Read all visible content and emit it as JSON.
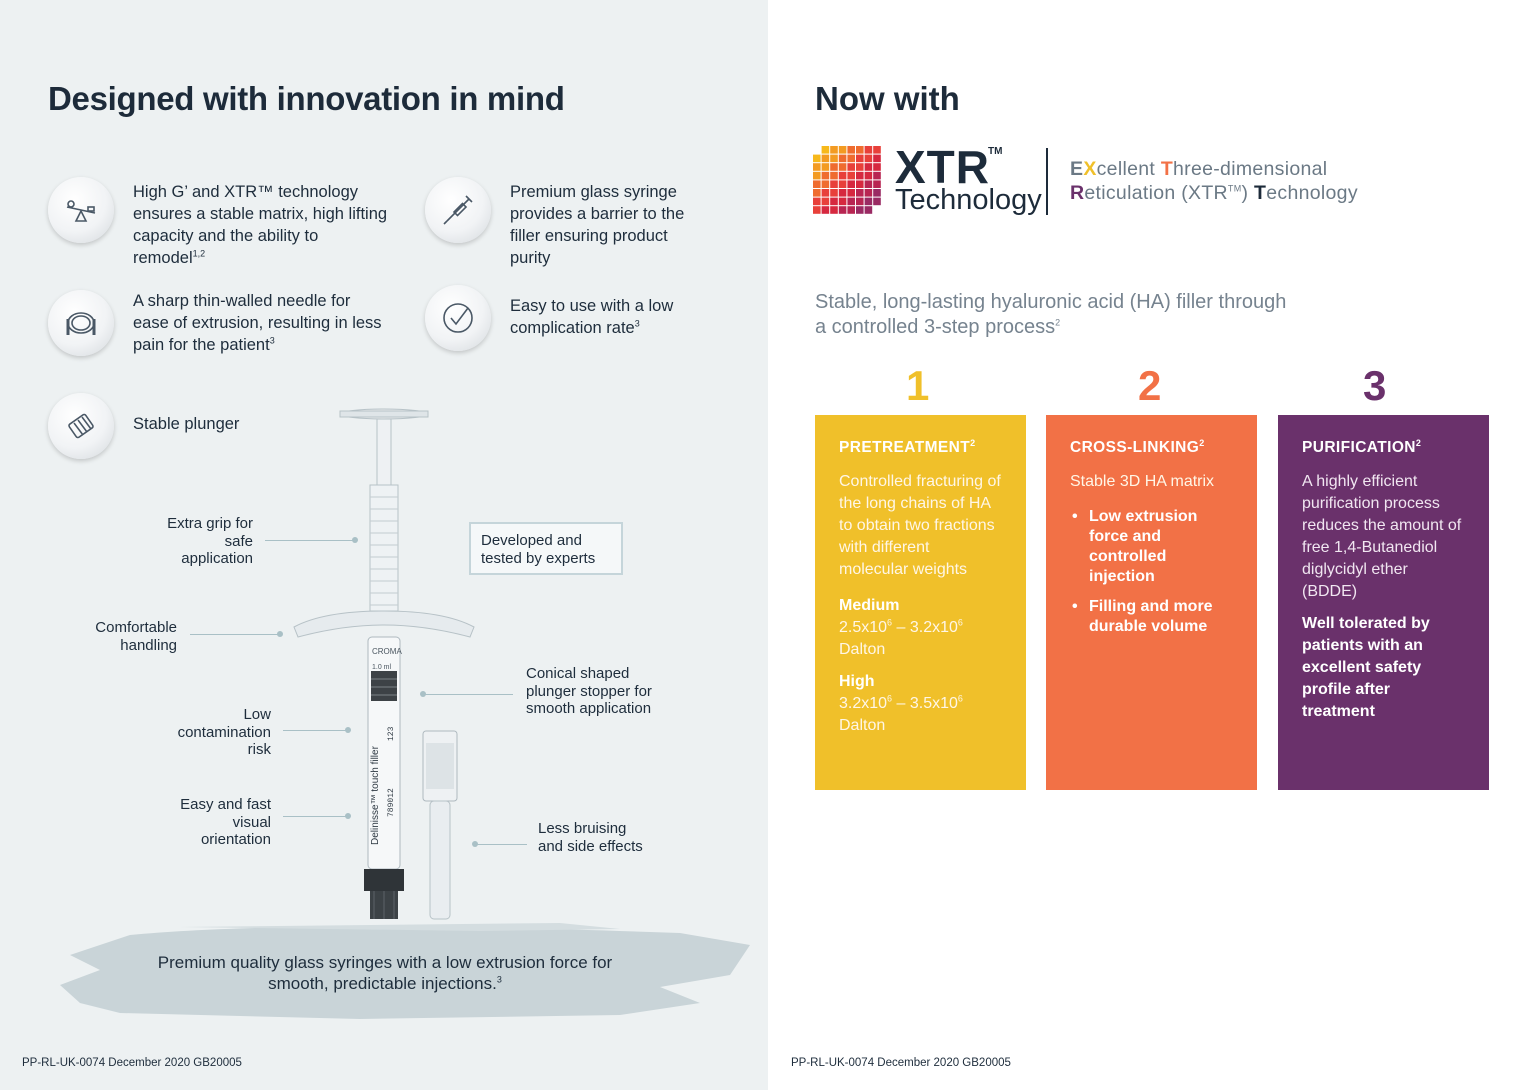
{
  "left": {
    "title": "Designed with innovation in mind",
    "features": [
      {
        "icon": "balance-scale-icon",
        "text": "High G’ and XTR™ technology ensures a stable matrix, high lifting capacity and the ability to remodel",
        "ref": "1,2"
      },
      {
        "icon": "syringe-icon",
        "text": "Premium glass syringe provides a barrier to the filler ensuring product purity",
        "ref": ""
      },
      {
        "icon": "needle-coil-icon",
        "text": "A sharp thin-walled needle for ease of extrusion, resulting in less pain for the patient",
        "ref": "3"
      },
      {
        "icon": "checkmark-icon",
        "text": "Easy to use with a low complication rate",
        "ref": "3"
      },
      {
        "icon": "plunger-icon",
        "text": "Stable plunger",
        "ref": ""
      }
    ],
    "callouts": {
      "extra_grip": "Extra grip for safe application",
      "comfortable": "Comfortable handling",
      "low_contamination": "Low contamination risk",
      "easy_visual": "Easy and fast visual orientation",
      "conical": "Conical shaped plunger stopper for smooth application",
      "less_bruising": "Less bruising and side effects",
      "expert_box": "Developed and tested by experts"
    },
    "syringe_labels": {
      "brand": "CROMA",
      "volume": "1.0 ml",
      "product": "Delinisse™ touch filler",
      "number": "789012",
      "lot": "123"
    },
    "caption": "Premium quality glass syringes with a low extrusion force for smooth, predictable injections.",
    "caption_ref": "3",
    "footer": "PP-RL-UK-0074  December 2020  GB20005"
  },
  "right": {
    "title": "Now with",
    "logo_word": "XTR",
    "logo_tm": "TM",
    "logo_sub": "Technology",
    "definition_line1": [
      "E",
      "X",
      "cellent ",
      "T",
      "hree-dimensional"
    ],
    "definition_line2": [
      "R",
      "eticulation (XTR",
      "TM",
      ") ",
      "T",
      "echnology"
    ],
    "subhead": "Stable, long-lasting hyaluronic acid (HA) filler through a controlled 3-step process",
    "subhead_ref": "2",
    "steps": [
      {
        "number": "1",
        "title": "PRETREATMENT",
        "ref": "2",
        "body": "Controlled fracturing of the long chains of HA to obtain two fractions with different molecular weights",
        "sub1_title": "Medium",
        "sub1_base1": "2.5x10",
        "sub1_exp1": "6",
        "sub1_mid": " – 3.2x10",
        "sub1_exp2": "6",
        "sub1_unit": "Dalton",
        "sub2_title": "High",
        "sub2_base1": "3.2x10",
        "sub2_exp1": "6",
        "sub2_mid": " – 3.5x10",
        "sub2_exp2": "6",
        "sub2_unit": "Dalton"
      },
      {
        "number": "2",
        "title": "CROSS-LINKING",
        "ref": "2",
        "body": "Stable 3D HA matrix",
        "bullets": [
          "Low extrusion force and controlled injection",
          "Filling and more durable volume"
        ]
      },
      {
        "number": "3",
        "title": "PURIFICATION",
        "ref": "2",
        "body": "A highly efficient purification process reduces the amount of free 1,4-Butanediol diglycidyl ether (BDDE)",
        "bold": "Well tolerated by patients with an excellent safety profile after treatment"
      }
    ],
    "colors": {
      "step1": "#f0c02a",
      "step2": "#f27146",
      "step3": "#6a316b",
      "num1": "#f0c02a",
      "num2": "#f27146",
      "num3": "#6a316b"
    },
    "footer": "PP-RL-UK-0074  December 2020  GB20005"
  }
}
